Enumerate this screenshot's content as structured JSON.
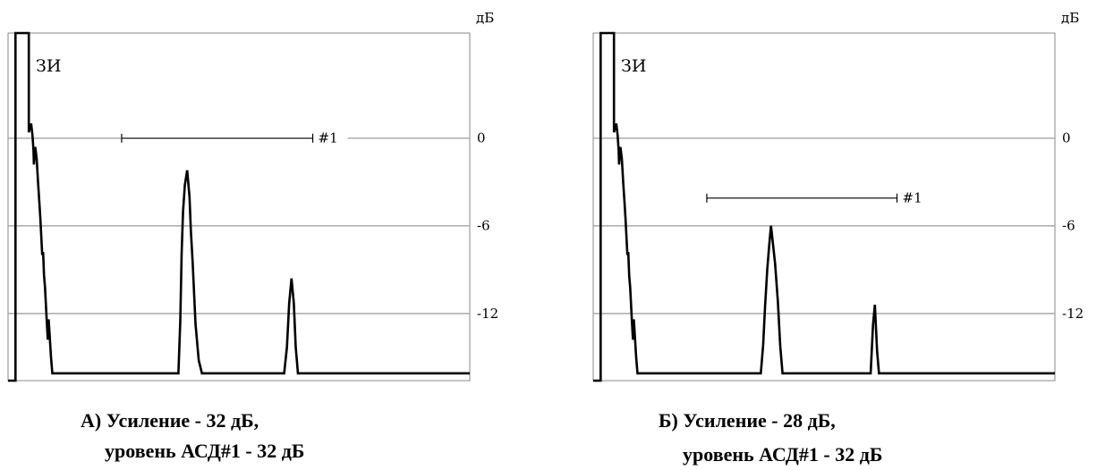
{
  "chart_data": [
    {
      "type": "line",
      "panel": "A",
      "unit_label": "дБ",
      "y_ticks": [
        {
          "value": 0,
          "label": "0"
        },
        {
          "value": -6,
          "label": "-6"
        },
        {
          "value": -12,
          "label": "-12"
        }
      ],
      "ylim": [
        -16.6,
        7.2
      ],
      "xlim": [
        0,
        100
      ],
      "probe_label": "ЗИ",
      "gate": {
        "label": "#1",
        "x_start": 24.6,
        "x_end": 66.0,
        "level_db": 0
      },
      "trace": [
        [
          0,
          -16.6
        ],
        [
          1.6,
          -16.6
        ],
        [
          1.6,
          7.2
        ],
        [
          4.5,
          7.2
        ],
        [
          4.5,
          0.4
        ],
        [
          5.0,
          1.0
        ],
        [
          5.3,
          0.2
        ],
        [
          5.5,
          -0.8
        ],
        [
          5.6,
          -1.8
        ],
        [
          5.9,
          -0.6
        ],
        [
          6.2,
          -1.4
        ],
        [
          6.5,
          -3.0
        ],
        [
          6.8,
          -4.5
        ],
        [
          7.0,
          -5.5
        ],
        [
          7.2,
          -6.8
        ],
        [
          7.4,
          -8.0
        ],
        [
          7.6,
          -7.8
        ],
        [
          7.8,
          -9.4
        ],
        [
          8.0,
          -10.2
        ],
        [
          8.2,
          -11.4
        ],
        [
          8.4,
          -12.6
        ],
        [
          8.6,
          -13.8
        ],
        [
          8.8,
          -12.4
        ],
        [
          9.0,
          -13.4
        ],
        [
          9.3,
          -15.0
        ],
        [
          9.6,
          -16.1
        ],
        [
          36.9,
          -16.1
        ],
        [
          37.3,
          -12.5
        ],
        [
          37.6,
          -7.9
        ],
        [
          37.9,
          -5.0
        ],
        [
          38.3,
          -3.2
        ],
        [
          38.8,
          -2.2
        ],
        [
          39.3,
          -4.0
        ],
        [
          39.6,
          -6.3
        ],
        [
          40.0,
          -8.6
        ],
        [
          40.6,
          -12.7
        ],
        [
          41.3,
          -15.2
        ],
        [
          42.0,
          -16.1
        ],
        [
          59.8,
          -16.1
        ],
        [
          60.4,
          -14.3
        ],
        [
          60.9,
          -11.3
        ],
        [
          61.4,
          -9.6
        ],
        [
          61.9,
          -11.3
        ],
        [
          62.3,
          -14.3
        ],
        [
          62.8,
          -16.1
        ],
        [
          100,
          -16.1
        ]
      ]
    },
    {
      "type": "line",
      "panel": "Б",
      "unit_label": "дБ",
      "y_ticks": [
        {
          "value": 0,
          "label": "0"
        },
        {
          "value": -6,
          "label": "-6"
        },
        {
          "value": -12,
          "label": "-12"
        }
      ],
      "ylim": [
        -16.6,
        7.2
      ],
      "xlim": [
        0,
        100
      ],
      "probe_label": "ЗИ",
      "gate": {
        "label": "#1",
        "x_start": 24.6,
        "x_end": 65.8,
        "level_db": -4.1
      },
      "trace": [
        [
          0,
          -16.6
        ],
        [
          1.6,
          -16.6
        ],
        [
          1.6,
          7.2
        ],
        [
          4.5,
          7.2
        ],
        [
          4.5,
          0.4
        ],
        [
          5.0,
          1.0
        ],
        [
          5.3,
          0.2
        ],
        [
          5.5,
          -0.8
        ],
        [
          5.6,
          -1.8
        ],
        [
          5.9,
          -0.6
        ],
        [
          6.2,
          -1.4
        ],
        [
          6.5,
          -3.0
        ],
        [
          6.8,
          -4.5
        ],
        [
          7.0,
          -5.5
        ],
        [
          7.2,
          -6.8
        ],
        [
          7.4,
          -8.0
        ],
        [
          7.6,
          -7.8
        ],
        [
          7.8,
          -9.4
        ],
        [
          8.0,
          -10.2
        ],
        [
          8.2,
          -11.4
        ],
        [
          8.4,
          -12.6
        ],
        [
          8.6,
          -13.8
        ],
        [
          8.8,
          -12.4
        ],
        [
          9.0,
          -13.4
        ],
        [
          9.3,
          -15.0
        ],
        [
          9.6,
          -16.1
        ],
        [
          36.3,
          -16.1
        ],
        [
          36.8,
          -14.2
        ],
        [
          37.2,
          -11.6
        ],
        [
          37.7,
          -9.0
        ],
        [
          38.1,
          -7.4
        ],
        [
          38.5,
          -6.0
        ],
        [
          39.0,
          -7.4
        ],
        [
          39.4,
          -8.6
        ],
        [
          40.0,
          -11.2
        ],
        [
          40.5,
          -14.2
        ],
        [
          41.0,
          -16.1
        ],
        [
          60.1,
          -16.1
        ],
        [
          60.6,
          -12.8
        ],
        [
          61.0,
          -11.4
        ],
        [
          61.5,
          -14.6
        ],
        [
          61.9,
          -16.1
        ],
        [
          100,
          -16.1
        ]
      ]
    }
  ],
  "captions": [
    {
      "line1": "А) Усиление - 32 дБ,",
      "line2": "уровень АСД#1 - 32 дБ"
    },
    {
      "line1": "Б) Усиление - 28 дБ,",
      "line2": "уровень АСД#1 - 32 дБ"
    }
  ]
}
